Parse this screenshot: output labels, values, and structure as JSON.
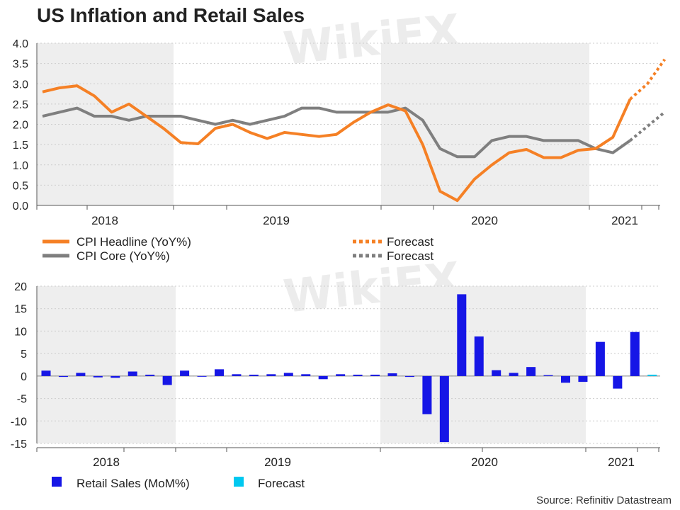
{
  "title": "US Inflation and Retail Sales",
  "source": "Source: Refinitiv Datastream",
  "watermark": "WikiFX",
  "colors": {
    "cpi_headline": "#f58025",
    "cpi_core": "#7f7f7f",
    "retail_sales": "#1616e6",
    "retail_forecast": "#00c8f0",
    "shade": "#eeeeee"
  },
  "chart_data": [
    {
      "type": "line",
      "x_labels": [
        "2018",
        "2019",
        "2020",
        "2021"
      ],
      "ylim": [
        0,
        4
      ],
      "yticks": [
        "0.0",
        "0.5",
        "1.0",
        "1.5",
        "2.0",
        "2.5",
        "3.0",
        "3.5",
        "4.0"
      ],
      "grid": true,
      "legend": "bottom",
      "legend_labels": {
        "cpi_headline": "CPI Headline (YoY%)",
        "cpi_core": "CPI Core (YoY%)",
        "forecast": "Forecast"
      },
      "series": [
        {
          "name": "CPI Headline (YoY%)",
          "values": [
            2.8,
            2.9,
            2.95,
            2.7,
            2.3,
            2.5,
            2.2,
            1.9,
            1.55,
            1.52,
            1.9,
            2.0,
            1.8,
            1.65,
            1.8,
            1.75,
            1.7,
            1.75,
            2.05,
            2.3,
            2.48,
            2.33,
            1.5,
            0.35,
            0.12,
            0.65,
            1.0,
            1.3,
            1.38,
            1.18,
            1.18,
            1.36,
            1.4,
            1.68,
            2.62
          ],
          "forecast": [
            2.62,
            3.0,
            3.6
          ]
        },
        {
          "name": "CPI Core (YoY%)",
          "values": [
            2.2,
            2.3,
            2.4,
            2.2,
            2.2,
            2.1,
            2.2,
            2.2,
            2.2,
            2.1,
            2.0,
            2.1,
            2.0,
            2.1,
            2.2,
            2.4,
            2.4,
            2.3,
            2.3,
            2.3,
            2.3,
            2.4,
            2.1,
            1.4,
            1.2,
            1.2,
            1.6,
            1.7,
            1.7,
            1.6,
            1.6,
            1.6,
            1.4,
            1.3,
            1.6
          ],
          "forecast": [
            1.6,
            1.95,
            2.3
          ]
        }
      ]
    },
    {
      "type": "bar",
      "x_labels": [
        "2018",
        "2019",
        "2020",
        "2021"
      ],
      "ylim": [
        -15,
        20
      ],
      "yticks": [
        "-15",
        "-10",
        "-5",
        "0",
        "5",
        "10",
        "15",
        "20"
      ],
      "grid": true,
      "legend": "bottom",
      "legend_labels": {
        "retail_sales": "Retail Sales (MoM%)",
        "forecast": "Forecast"
      },
      "series": [
        {
          "name": "Retail Sales (MoM%)",
          "values": [
            1.2,
            -0.2,
            0.7,
            -0.3,
            -0.4,
            1.0,
            0.3,
            -2.0,
            1.2,
            0.0,
            1.5,
            0.4,
            0.3,
            0.4,
            0.7,
            0.4,
            -0.7,
            0.4,
            0.3,
            0.3,
            0.6,
            -0.2,
            -8.5,
            -14.7,
            18.2,
            8.8,
            1.3,
            0.7,
            2.0,
            0.2,
            -1.5,
            -1.3,
            7.6,
            -2.8,
            9.8
          ]
        },
        {
          "name": "Forecast",
          "values": [
            0.3
          ]
        }
      ]
    }
  ]
}
